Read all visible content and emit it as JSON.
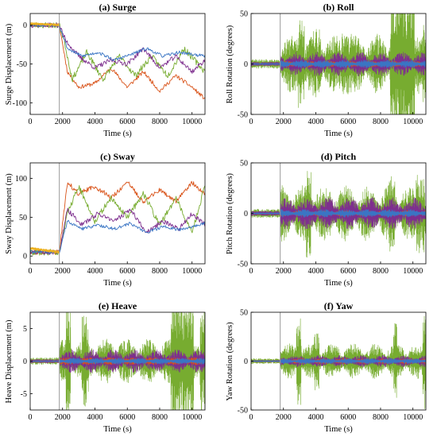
{
  "colors": {
    "orange": "#D95319",
    "green": "#77AC30",
    "purple": "#7E2F8E",
    "blue": "#3A75C4",
    "yellow": "#EDB120",
    "marker": "#9a9a9a"
  },
  "chart_data": [
    {
      "type": "line",
      "title": "(a) Surge",
      "xlabel": "Time (s)",
      "ylabel": "Surge Displacement (m)",
      "xlim": [
        0,
        10800
      ],
      "ylim": [
        -115,
        15
      ],
      "xticks": [
        0,
        2000,
        4000,
        6000,
        8000,
        10000
      ],
      "yticks": [
        0,
        -50,
        -100
      ],
      "event_x": 1800,
      "series": [
        {
          "color": "orange",
          "pre": 0,
          "post": -68,
          "amp": 22,
          "noise": 2.5,
          "seed": 11,
          "xs": [
            0,
            1800,
            2300,
            3000,
            4000,
            5000,
            6000,
            7000,
            8000,
            9000,
            10000,
            10800
          ],
          "ys": [
            0,
            0,
            -60,
            -80,
            -75,
            -55,
            -80,
            -60,
            -85,
            -65,
            -80,
            -95
          ]
        },
        {
          "color": "green",
          "pre": 0,
          "post": -48,
          "amp": 40,
          "noise": 4,
          "seed": 23,
          "xs": [
            0,
            1800,
            2100,
            2600,
            3500,
            4500,
            5500,
            6500,
            7500,
            8500,
            9500,
            10800
          ],
          "ys": [
            0,
            0,
            -20,
            -70,
            -35,
            -70,
            -40,
            -65,
            -40,
            -65,
            -30,
            -60
          ]
        },
        {
          "color": "purple",
          "pre": 0,
          "post": -45,
          "amp": 20,
          "noise": 3,
          "seed": 37,
          "xs": [
            0,
            1800,
            2200,
            3000,
            4000,
            5000,
            6000,
            7000,
            8000,
            9000,
            10000,
            10800
          ],
          "ys": [
            0,
            0,
            -20,
            -40,
            -55,
            -45,
            -50,
            -30,
            -55,
            -40,
            -60,
            -45
          ]
        },
        {
          "color": "blue",
          "pre": 0,
          "post": -38,
          "amp": 12,
          "noise": 2,
          "seed": 53,
          "xs": [
            0,
            1800,
            2300,
            3200,
            4200,
            5200,
            6200,
            7200,
            8200,
            9200,
            10800
          ],
          "ys": [
            0,
            0,
            -30,
            -40,
            -35,
            -45,
            -38,
            -30,
            -40,
            -35,
            -40
          ]
        },
        {
          "color": "yellow",
          "pre": 0,
          "post": -2,
          "amp": 3,
          "noise": 1.5,
          "seed": 61,
          "xs": [
            0,
            1800
          ],
          "ys": [
            2,
            0
          ]
        }
      ]
    },
    {
      "type": "line",
      "title": "(b) Roll",
      "xlabel": "Time (s)",
      "ylabel": "Roll Rotation (degrees)",
      "xlim": [
        0,
        10800
      ],
      "ylim": [
        -50,
        50
      ],
      "xticks": [
        0,
        2000,
        4000,
        6000,
        8000,
        10000
      ],
      "yticks": [
        50,
        0,
        -50
      ],
      "event_x": 1800,
      "series": [
        {
          "color": "green",
          "amp": 30,
          "seed": 71,
          "bursts": [
            [
              2900,
              3300,
              45
            ],
            [
              3800,
              4300,
              35
            ],
            [
              5600,
              6200,
              30
            ],
            [
              8600,
              10100,
              80
            ],
            [
              10600,
              10800,
              40
            ]
          ]
        },
        {
          "color": "purple",
          "amp": 12,
          "seed": 83
        },
        {
          "color": "orange",
          "amp": 3,
          "seed": 97
        },
        {
          "color": "blue",
          "amp": 4,
          "seed": 101
        }
      ]
    },
    {
      "type": "line",
      "title": "(c) Sway",
      "xlabel": "Time (s)",
      "ylabel": "Sway Displacement (m)",
      "xlim": [
        0,
        10800
      ],
      "ylim": [
        -10,
        120
      ],
      "xticks": [
        0,
        2000,
        4000,
        6000,
        8000,
        10000
      ],
      "yticks": [
        0,
        50,
        100
      ],
      "event_x": 1800,
      "series": [
        {
          "color": "orange",
          "pre": 5,
          "post": 75,
          "amp": 20,
          "noise": 3,
          "seed": 113,
          "xs": [
            0,
            1800,
            2300,
            3000,
            4000,
            5000,
            6000,
            7000,
            8000,
            9000,
            10000,
            10800
          ],
          "ys": [
            5,
            5,
            95,
            80,
            90,
            75,
            95,
            70,
            85,
            70,
            95,
            80
          ]
        },
        {
          "color": "green",
          "pre": 5,
          "post": 60,
          "amp": 30,
          "noise": 4,
          "seed": 127,
          "xs": [
            0,
            1800,
            2300,
            3000,
            4000,
            5000,
            6000,
            7000,
            8000,
            9000,
            10000,
            10800
          ],
          "ys": [
            5,
            5,
            55,
            90,
            45,
            75,
            50,
            80,
            40,
            75,
            30,
            90
          ]
        },
        {
          "color": "purple",
          "pre": 5,
          "post": 48,
          "amp": 18,
          "noise": 3,
          "seed": 131,
          "xs": [
            0,
            1800,
            2300,
            3200,
            4200,
            5200,
            6200,
            7200,
            8200,
            9200,
            10000,
            10800
          ],
          "ys": [
            5,
            5,
            60,
            40,
            55,
            45,
            60,
            30,
            45,
            35,
            55,
            40
          ]
        },
        {
          "color": "blue",
          "pre": 5,
          "post": 40,
          "amp": 10,
          "noise": 2,
          "seed": 139,
          "xs": [
            0,
            1800,
            2300,
            3200,
            4200,
            5200,
            6200,
            7200,
            8200,
            9200,
            10800
          ],
          "ys": [
            5,
            5,
            45,
            35,
            40,
            35,
            42,
            30,
            38,
            34,
            42
          ]
        },
        {
          "color": "yellow",
          "pre": 5,
          "post": 10,
          "amp": 3,
          "noise": 1.5,
          "seed": 149,
          "xs": [
            0,
            1800
          ],
          "ys": [
            10,
            5
          ]
        }
      ]
    },
    {
      "type": "line",
      "title": "(d) Pitch",
      "xlabel": "Time (s)",
      "ylabel": "Pitch Rotation (degrees)",
      "xlim": [
        0,
        10800
      ],
      "ylim": [
        -50,
        50
      ],
      "xticks": [
        0,
        2000,
        4000,
        6000,
        8000,
        10000
      ],
      "yticks": [
        50,
        0,
        -50
      ],
      "event_x": 1800,
      "series": [
        {
          "color": "green",
          "amp": 28,
          "seed": 151,
          "bursts": [
            [
              3400,
              3700,
              45
            ],
            [
              8500,
              8900,
              40
            ],
            [
              10200,
              10700,
              40
            ]
          ]
        },
        {
          "color": "purple",
          "amp": 16,
          "seed": 163
        },
        {
          "color": "orange",
          "amp": 3,
          "seed": 167
        },
        {
          "color": "blue",
          "amp": 4,
          "seed": 173
        }
      ]
    },
    {
      "type": "line",
      "title": "(e) Heave",
      "xlabel": "Time (s)",
      "ylabel": "Heave Displacement (m)",
      "xlim": [
        0,
        10800
      ],
      "ylim": [
        -7.5,
        7.5
      ],
      "xticks": [
        0,
        2000,
        4000,
        6000,
        8000,
        10000
      ],
      "yticks": [
        5,
        0,
        -5
      ],
      "event_x": 1800,
      "series": [
        {
          "color": "green",
          "amp": 3.5,
          "seed": 179,
          "bursts": [
            [
              2200,
              2500,
              8
            ],
            [
              3200,
              3600,
              7
            ],
            [
              8700,
              10100,
              10
            ],
            [
              10500,
              10800,
              8
            ]
          ]
        },
        {
          "color": "purple",
          "amp": 1.8,
          "seed": 181
        },
        {
          "color": "orange",
          "amp": 0.6,
          "seed": 191
        },
        {
          "color": "blue",
          "amp": 0.5,
          "seed": 193
        }
      ]
    },
    {
      "type": "line",
      "title": "(f) Yaw",
      "xlabel": "Time (s)",
      "ylabel": "Yaw Rotation (degrees)",
      "xlim": [
        0,
        10800
      ],
      "ylim": [
        -50,
        50
      ],
      "xticks": [
        0,
        2000,
        4000,
        6000,
        8000,
        10000
      ],
      "yticks": [
        50,
        0,
        -50
      ],
      "event_x": 1800,
      "series": [
        {
          "color": "green",
          "amp": 18,
          "seed": 197,
          "bursts": [
            [
              2800,
              3100,
              45
            ],
            [
              3900,
              4200,
              30
            ],
            [
              8800,
              9000,
              40
            ],
            [
              10600,
              10800,
              50
            ]
          ]
        },
        {
          "color": "purple",
          "amp": 6,
          "seed": 199
        },
        {
          "color": "orange",
          "amp": 3,
          "seed": 211
        },
        {
          "color": "blue",
          "amp": 3,
          "seed": 223
        }
      ]
    }
  ]
}
